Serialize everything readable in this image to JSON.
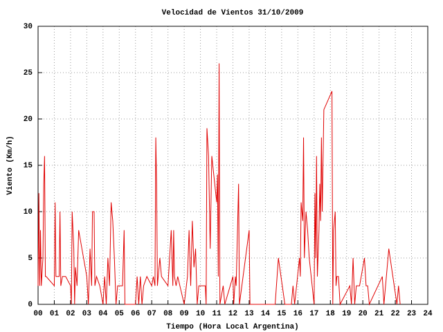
{
  "chart_data": {
    "type": "line",
    "title": "Velocidad de Vientos 31/10/2009",
    "xlabel": "Tiempo (Hora Local Argentina)",
    "ylabel": "Viento (Km/h)",
    "x": [
      0,
      0.05,
      0.1,
      0.15,
      0.2,
      0.3,
      0.35,
      0.4,
      0.45,
      0.5,
      1,
      1.05,
      1.1,
      1.3,
      1.35,
      1.4,
      1.5,
      1.7,
      2,
      2.05,
      2.1,
      2.2,
      2.25,
      2.3,
      2.4,
      2.5,
      3,
      3.1,
      3.2,
      3.3,
      3.35,
      3.45,
      3.5,
      3.6,
      3.8,
      4,
      4.1,
      4.2,
      4.3,
      4.4,
      4.5,
      4.6,
      4.7,
      4.8,
      4.9,
      5.2,
      5.3,
      5.35,
      6,
      6.1,
      6.2,
      6.3,
      6.4,
      6.5,
      6.7,
      7,
      7.1,
      7.2,
      7.25,
      7.3,
      7.35,
      7.5,
      7.6,
      8,
      8.1,
      8.2,
      8.3,
      8.35,
      8.4,
      8.5,
      8.6,
      9,
      9.2,
      9.3,
      9.4,
      9.5,
      9.6,
      9.7,
      9.8,
      9.9,
      10.3,
      10.35,
      10.4,
      10.5,
      10.6,
      10.7,
      11,
      11.05,
      11.1,
      11.15,
      11.2,
      11.4,
      11.5,
      12,
      12.05,
      12.15,
      12.2,
      12.35,
      12.4,
      13,
      13.05,
      14.6,
      14.8,
      15.2,
      15.6,
      15.7,
      15.8,
      16.1,
      16.15,
      16.2,
      16.3,
      16.35,
      16.4,
      16.5,
      16.6,
      16.7,
      17,
      17.05,
      17.1,
      17.15,
      17.2,
      17.3,
      17.35,
      17.4,
      17.45,
      17.5,
      17.6,
      18.1,
      18.15,
      18.2,
      18.3,
      18.35,
      18.4,
      18.5,
      18.6,
      19.2,
      19.3,
      19.4,
      19.5,
      19.6,
      19.8,
      20,
      20.1,
      20.2,
      20.3,
      20.4,
      21.2,
      21.3,
      21.6,
      22.1,
      22.2,
      22.3
    ],
    "series": [
      {
        "color": "#e00000",
        "values": [
          2,
          12,
          2,
          8,
          2,
          5,
          13,
          16,
          3,
          3,
          2,
          11,
          3,
          3,
          10,
          2,
          3,
          3,
          2,
          0,
          10,
          6,
          0,
          4,
          2,
          8,
          3,
          0,
          6,
          2,
          10,
          10,
          2,
          3,
          2,
          0,
          3,
          0,
          5,
          2,
          11,
          9,
          5,
          0,
          2,
          2,
          8,
          0,
          0,
          3,
          0,
          3,
          0,
          2,
          3,
          2,
          3,
          2,
          18,
          13,
          2,
          5,
          3,
          2,
          5,
          8,
          2,
          8,
          3,
          2,
          3,
          0,
          3,
          8,
          2,
          9,
          4,
          6,
          0,
          2,
          2,
          0,
          19,
          16,
          6,
          16,
          11,
          14,
          3,
          26,
          0,
          2,
          0,
          3,
          0,
          3,
          2,
          13,
          0,
          8,
          0,
          0,
          5,
          0,
          0,
          2,
          0,
          5,
          3,
          11,
          9,
          18,
          5,
          10,
          8,
          5,
          0,
          12,
          5,
          16,
          3,
          8,
          13,
          9,
          18,
          10,
          21,
          23,
          0,
          8,
          10,
          2,
          3,
          3,
          0,
          2,
          0,
          5,
          0,
          2,
          2,
          4,
          5,
          2,
          2,
          0,
          3,
          0,
          6,
          0,
          2,
          0
        ]
      }
    ],
    "xlim": [
      0,
      24
    ],
    "xticks": [
      {
        "value": 0,
        "label": "00"
      },
      {
        "value": 1,
        "label": "01"
      },
      {
        "value": 2,
        "label": "02"
      },
      {
        "value": 3,
        "label": "03"
      },
      {
        "value": 4,
        "label": "04"
      },
      {
        "value": 5,
        "label": "05"
      },
      {
        "value": 6,
        "label": "06"
      },
      {
        "value": 7,
        "label": "07"
      },
      {
        "value": 8,
        "label": "08"
      },
      {
        "value": 9,
        "label": "09"
      },
      10,
      11,
      12,
      13,
      14,
      15,
      16,
      17,
      18,
      19,
      20,
      21,
      22,
      23,
      24
    ],
    "ylim": [
      0,
      30
    ],
    "yticks": [
      0,
      5,
      10,
      15,
      20,
      25,
      30
    ],
    "grid": true
  }
}
